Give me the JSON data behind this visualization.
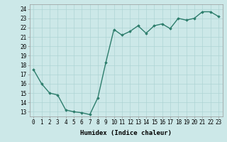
{
  "x": [
    0,
    1,
    2,
    3,
    4,
    5,
    6,
    7,
    8,
    9,
    10,
    11,
    12,
    13,
    14,
    15,
    16,
    17,
    18,
    19,
    20,
    21,
    22,
    23
  ],
  "y": [
    17.5,
    16.0,
    15.0,
    14.8,
    13.2,
    13.0,
    12.9,
    12.7,
    14.5,
    18.3,
    21.8,
    21.2,
    21.6,
    22.2,
    21.4,
    22.2,
    22.4,
    21.9,
    23.0,
    22.8,
    23.0,
    23.7,
    23.7,
    23.2
  ],
  "xlabel": "Humidex (Indice chaleur)",
  "ylabel": "",
  "xlim": [
    -0.5,
    23.5
  ],
  "ylim": [
    12.5,
    24.5
  ],
  "yticks": [
    13,
    14,
    15,
    16,
    17,
    18,
    19,
    20,
    21,
    22,
    23,
    24
  ],
  "xticks": [
    0,
    1,
    2,
    3,
    4,
    5,
    6,
    7,
    8,
    9,
    10,
    11,
    12,
    13,
    14,
    15,
    16,
    17,
    18,
    19,
    20,
    21,
    22,
    23
  ],
  "line_color": "#2d7d6c",
  "marker": "D",
  "marker_size": 1.8,
  "line_width": 1.0,
  "bg_color": "#cce8e8",
  "grid_color": "#aed4d4",
  "xlabel_fontsize": 6.5,
  "tick_fontsize": 5.5
}
